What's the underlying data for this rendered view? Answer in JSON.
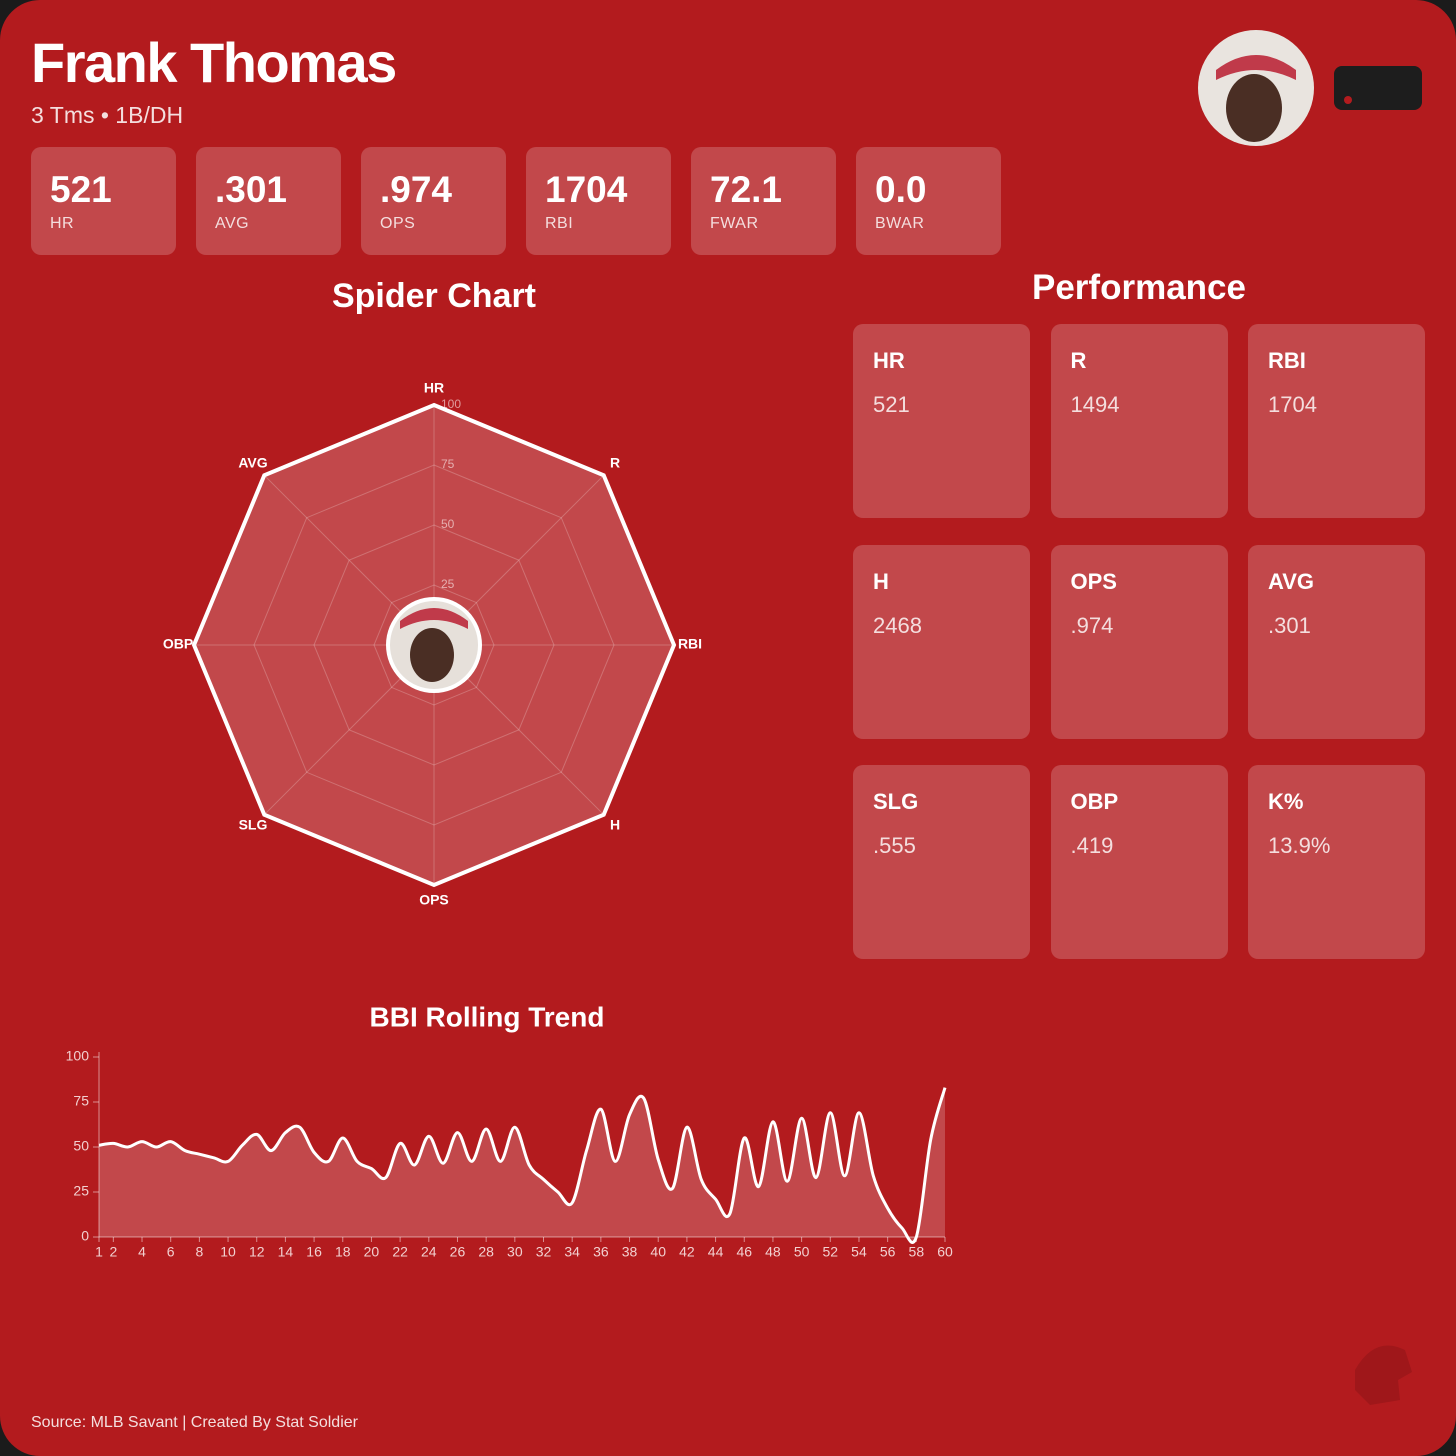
{
  "header": {
    "title": "Frank Thomas",
    "subtitle": "3 Tms • 1B/DH"
  },
  "stats": [
    {
      "value": "521",
      "label": "HR"
    },
    {
      "value": ".301",
      "label": "AVG"
    },
    {
      "value": ".974",
      "label": "OPS"
    },
    {
      "value": "1704",
      "label": "RBI"
    },
    {
      "value": "72.1",
      "label": "FWAR"
    },
    {
      "value": "0.0",
      "label": "BWAR"
    }
  ],
  "performance": {
    "title": "Performance",
    "cells": [
      {
        "label": "HR",
        "value": "521"
      },
      {
        "label": "R",
        "value": "1494"
      },
      {
        "label": "RBI",
        "value": "1704"
      },
      {
        "label": "H",
        "value": "2468"
      },
      {
        "label": "OPS",
        "value": ".974"
      },
      {
        "label": "AVG",
        "value": ".301"
      },
      {
        "label": "SLG",
        "value": ".555"
      },
      {
        "label": "OBP",
        "value": ".419"
      },
      {
        "label": "K%",
        "value": "13.9%"
      }
    ]
  },
  "footer": "Source: MLB Savant | Created By Stat Soldier",
  "chart_data": [
    {
      "type": "radar",
      "title": "Spider Chart",
      "categories": [
        "HR",
        "R",
        "RBI",
        "H",
        "OPS",
        "SLG",
        "OBP",
        "AVG"
      ],
      "values": [
        100,
        100,
        100,
        100,
        100,
        100,
        100,
        100
      ],
      "color": "#ffffff",
      "ylim": [
        0,
        100
      ],
      "yticks": [
        25,
        50,
        75,
        100
      ],
      "grid": true
    },
    {
      "type": "line",
      "title": "BBI Rolling Trend",
      "x": [
        1,
        2,
        3,
        4,
        5,
        6,
        7,
        8,
        9,
        10,
        11,
        12,
        13,
        14,
        15,
        16,
        17,
        18,
        19,
        20,
        21,
        22,
        23,
        24,
        25,
        26,
        27,
        28,
        29,
        30,
        31,
        32,
        33,
        34,
        35,
        36,
        37,
        38,
        39,
        40,
        41,
        42,
        43,
        44,
        45,
        46,
        47,
        48,
        49,
        50,
        51,
        52,
        53,
        54,
        55,
        56,
        57,
        58,
        59,
        60
      ],
      "values": [
        51,
        52,
        50,
        53,
        50,
        53,
        48,
        46,
        44,
        42,
        51,
        57,
        48,
        58,
        61,
        47,
        42,
        55,
        42,
        38,
        33,
        52,
        40,
        56,
        41,
        58,
        42,
        60,
        42,
        61,
        40,
        32,
        25,
        19,
        48,
        71,
        42,
        68,
        77,
        43,
        27,
        61,
        32,
        21,
        13,
        55,
        28,
        64,
        31,
        66,
        33,
        69,
        34,
        69,
        34,
        16,
        5,
        0,
        54,
        83
      ],
      "color": "#ffffff",
      "xlim": [
        1,
        60
      ],
      "ylim": [
        0,
        100
      ],
      "xticks": [
        1,
        2,
        4,
        6,
        8,
        10,
        12,
        14,
        16,
        18,
        20,
        22,
        24,
        26,
        28,
        30,
        32,
        34,
        36,
        38,
        40,
        42,
        44,
        46,
        48,
        50,
        52,
        54,
        56,
        58,
        60
      ],
      "yticks": [
        0,
        25,
        50,
        75,
        100
      ]
    }
  ]
}
